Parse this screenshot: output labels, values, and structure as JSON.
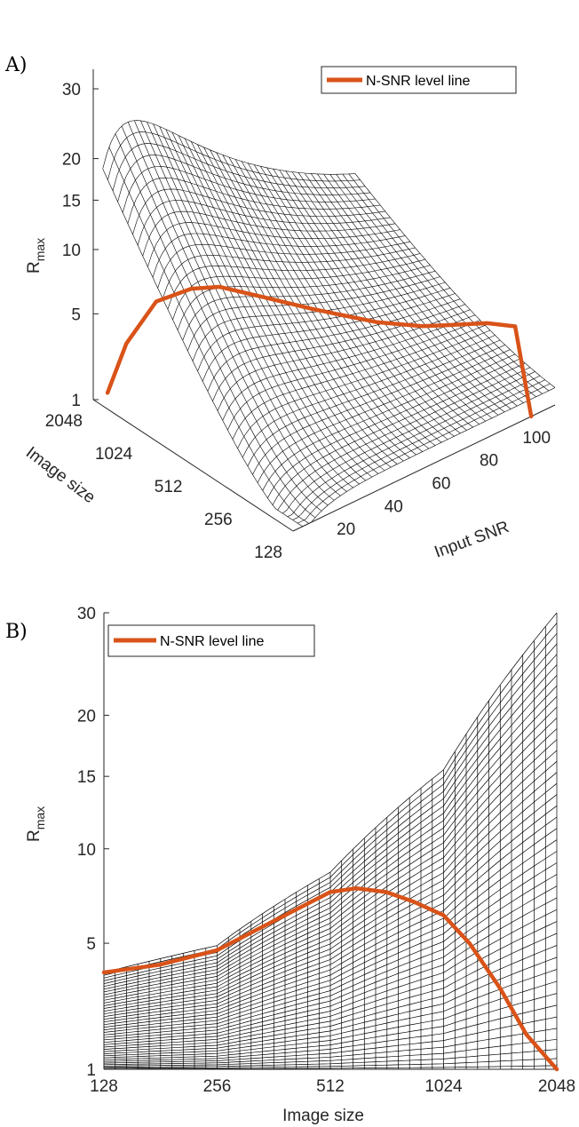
{
  "chart_data": [
    {
      "panel_label": "A)",
      "type": "surface",
      "view": "3d",
      "ylabel": "R",
      "ylabel_sub": "max",
      "yticks": [
        1,
        5,
        10,
        15,
        20,
        30
      ],
      "ylim": [
        1,
        30
      ],
      "y_scale": "sqrt",
      "image_size_label": "Image size",
      "image_size_ticks": [
        "2048",
        "1024",
        "512",
        "256",
        "128"
      ],
      "snr_label": "Input SNR",
      "snr_ticks": [
        20,
        40,
        60,
        80,
        100
      ],
      "legend": {
        "label": "N-SNR level line",
        "position": "top-right"
      },
      "level_line": {
        "name": "N-SNR level line",
        "color": "#D95319",
        "image_size": [
          2048,
          1800,
          1500,
          1200,
          1024,
          800,
          600,
          512,
          400,
          300,
          256,
          200,
          160,
          128
        ],
        "snr": [
          6,
          10,
          17,
          25,
          32,
          43,
          55,
          62,
          70,
          80,
          86,
          95,
          100,
          100
        ],
        "value": [
          1.0,
          3.0,
          5.5,
          6.5,
          6.6,
          5.8,
          5.0,
          4.6,
          4.3,
          4.2,
          4.3,
          4.5,
          4.6,
          1.0
        ]
      }
    },
    {
      "panel_label": "B)",
      "type": "surface",
      "view": "side",
      "xlabel": "Image size",
      "ylabel": "R",
      "ylabel_sub": "max",
      "xticks": [
        "128",
        "256",
        "512",
        "1024",
        "2048"
      ],
      "yticks": [
        1,
        5,
        10,
        15,
        20,
        30
      ],
      "ylim": [
        1,
        30
      ],
      "y_scale": "sqrt",
      "legend": {
        "label": "N-SNR level line",
        "position": "top-left"
      },
      "upper_envelope": {
        "image_size": [
          128,
          256,
          512,
          1024,
          2048
        ],
        "value": [
          3.8,
          4.9,
          8.6,
          15.5,
          30.0
        ]
      },
      "level_line": {
        "name": "N-SNR level line",
        "color": "#D95319",
        "image_size": [
          128,
          180,
          256,
          360,
          512,
          600,
          720,
          850,
          1024,
          1200,
          1450,
          1700,
          2048
        ],
        "value": [
          3.8,
          4.1,
          4.7,
          6.0,
          7.5,
          7.7,
          7.5,
          7.0,
          6.3,
          5.0,
          3.2,
          1.8,
          1.0
        ]
      }
    }
  ]
}
